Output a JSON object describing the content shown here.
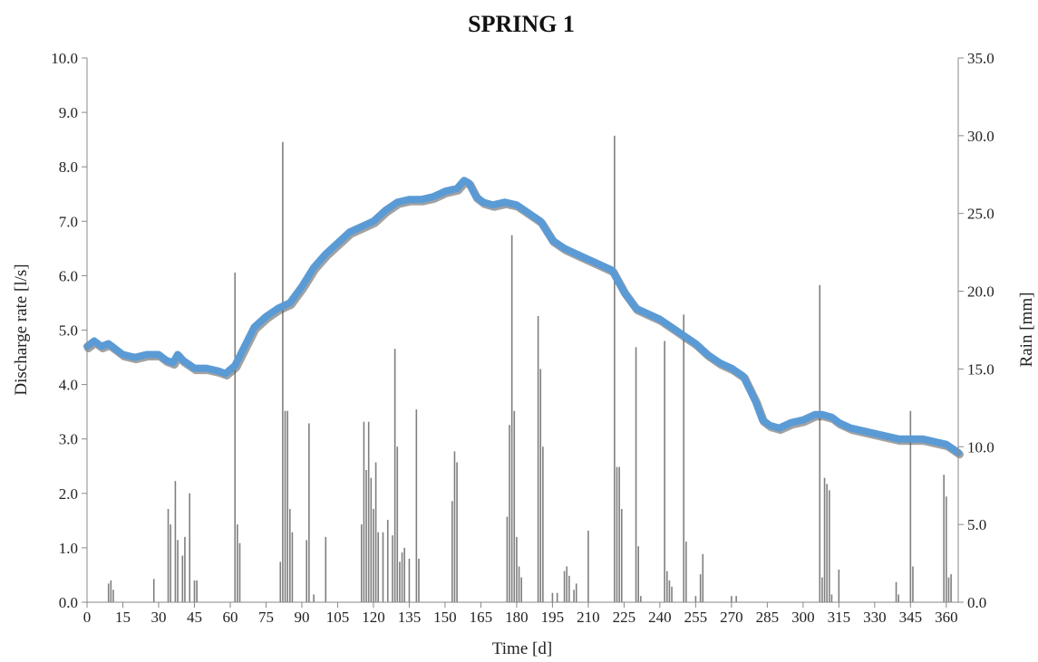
{
  "chart_data": {
    "type": "line",
    "title": "SPRING 1",
    "xlabel": "Time [d]",
    "ylabel": "Discharge rate [l/s]",
    "y2label": "Rain [mm]",
    "xlim": [
      0,
      365
    ],
    "ylim": [
      0,
      10
    ],
    "y2lim": [
      0,
      35
    ],
    "xticks": [
      0,
      15,
      30,
      45,
      60,
      75,
      90,
      105,
      120,
      135,
      150,
      165,
      180,
      195,
      210,
      225,
      240,
      255,
      270,
      285,
      300,
      315,
      330,
      345,
      360
    ],
    "yticks": [
      "0.0",
      "1.0",
      "2.0",
      "3.0",
      "4.0",
      "5.0",
      "6.0",
      "7.0",
      "8.0",
      "9.0",
      "10.0"
    ],
    "y2ticks": [
      "0.0",
      "5.0",
      "10.0",
      "15.0",
      "20.0",
      "25.0",
      "30.0",
      "35.0"
    ],
    "grid": false,
    "legend": "none",
    "colors": {
      "discharge": "#5b9bd5",
      "discharge_shadow": "#555555",
      "rain": "#7f7f7f"
    },
    "series": [
      {
        "axis": "left",
        "kind": "line",
        "x": [
          0,
          3,
          6,
          9,
          12,
          15,
          20,
          25,
          30,
          33,
          36,
          38,
          40,
          45,
          50,
          55,
          58,
          62,
          66,
          70,
          75,
          80,
          85,
          90,
          95,
          100,
          105,
          110,
          115,
          120,
          125,
          130,
          135,
          140,
          145,
          150,
          155,
          158,
          160,
          163,
          166,
          170,
          175,
          180,
          185,
          190,
          195,
          200,
          205,
          210,
          215,
          220,
          225,
          230,
          235,
          240,
          245,
          250,
          255,
          260,
          265,
          270,
          275,
          280,
          283,
          286,
          290,
          295,
          300,
          305,
          308,
          312,
          315,
          320,
          325,
          330,
          335,
          340,
          345,
          350,
          355,
          360,
          365
        ],
        "y": [
          4.7,
          4.8,
          4.7,
          4.75,
          4.65,
          4.55,
          4.5,
          4.55,
          4.55,
          4.45,
          4.4,
          4.55,
          4.45,
          4.3,
          4.3,
          4.25,
          4.2,
          4.35,
          4.7,
          5.05,
          5.25,
          5.4,
          5.5,
          5.8,
          6.15,
          6.4,
          6.6,
          6.8,
          6.9,
          7.0,
          7.2,
          7.35,
          7.4,
          7.4,
          7.45,
          7.55,
          7.6,
          7.75,
          7.7,
          7.45,
          7.35,
          7.3,
          7.35,
          7.3,
          7.15,
          7.0,
          6.65,
          6.5,
          6.4,
          6.3,
          6.2,
          6.1,
          5.7,
          5.4,
          5.3,
          5.2,
          5.05,
          4.9,
          4.75,
          4.55,
          4.4,
          4.3,
          4.15,
          3.7,
          3.35,
          3.25,
          3.2,
          3.3,
          3.35,
          3.45,
          3.45,
          3.4,
          3.3,
          3.2,
          3.15,
          3.1,
          3.05,
          3.0,
          3.0,
          3.0,
          2.95,
          2.9,
          2.75
        ]
      },
      {
        "axis": "right",
        "kind": "bar",
        "x": [
          9,
          10,
          11,
          28,
          34,
          35,
          37,
          38,
          40,
          41,
          43,
          45,
          46,
          62,
          63,
          64,
          81,
          82,
          83,
          84,
          85,
          86,
          92,
          93,
          95,
          100,
          115,
          116,
          117,
          118,
          119,
          120,
          121,
          122,
          124,
          126,
          128,
          129,
          130,
          131,
          132,
          133,
          135,
          138,
          139,
          153,
          154,
          155,
          176,
          177,
          178,
          179,
          180,
          181,
          182,
          189,
          190,
          191,
          195,
          197,
          200,
          201,
          202,
          204,
          205,
          210,
          221,
          222,
          223,
          224,
          230,
          231,
          232,
          242,
          243,
          244,
          245,
          250,
          251,
          255,
          257,
          258,
          270,
          272,
          307,
          308,
          309,
          310,
          311,
          312,
          315,
          339,
          340,
          345,
          346,
          359,
          360,
          361,
          362
        ],
        "y": [
          1.2,
          1.4,
          0.8,
          1.5,
          6.0,
          5.0,
          7.8,
          4.0,
          3.0,
          4.2,
          7.0,
          1.4,
          1.4,
          21.2,
          5.0,
          3.8,
          2.6,
          29.6,
          12.3,
          12.3,
          6.0,
          4.5,
          4.0,
          11.5,
          0.5,
          4.2,
          5.0,
          11.6,
          8.5,
          11.6,
          8.0,
          6.0,
          9.0,
          4.5,
          4.5,
          5.3,
          4.3,
          16.3,
          10.0,
          2.6,
          3.2,
          3.5,
          2.8,
          12.4,
          2.8,
          6.5,
          9.7,
          9.0,
          5.5,
          11.4,
          23.6,
          12.3,
          4.2,
          2.3,
          1.6,
          18.4,
          15.0,
          10.0,
          0.6,
          0.6,
          2.0,
          2.3,
          1.7,
          0.8,
          1.2,
          4.6,
          30.0,
          8.7,
          8.7,
          6.0,
          16.4,
          3.6,
          0.4,
          16.8,
          2.0,
          1.4,
          1.0,
          18.5,
          3.9,
          0.4,
          1.8,
          3.1,
          0.4,
          0.4,
          20.4,
          1.6,
          8.0,
          7.6,
          7.2,
          0.5,
          2.1,
          1.3,
          0.5,
          12.3,
          2.3,
          8.2,
          6.8,
          1.6,
          1.8
        ]
      }
    ]
  }
}
